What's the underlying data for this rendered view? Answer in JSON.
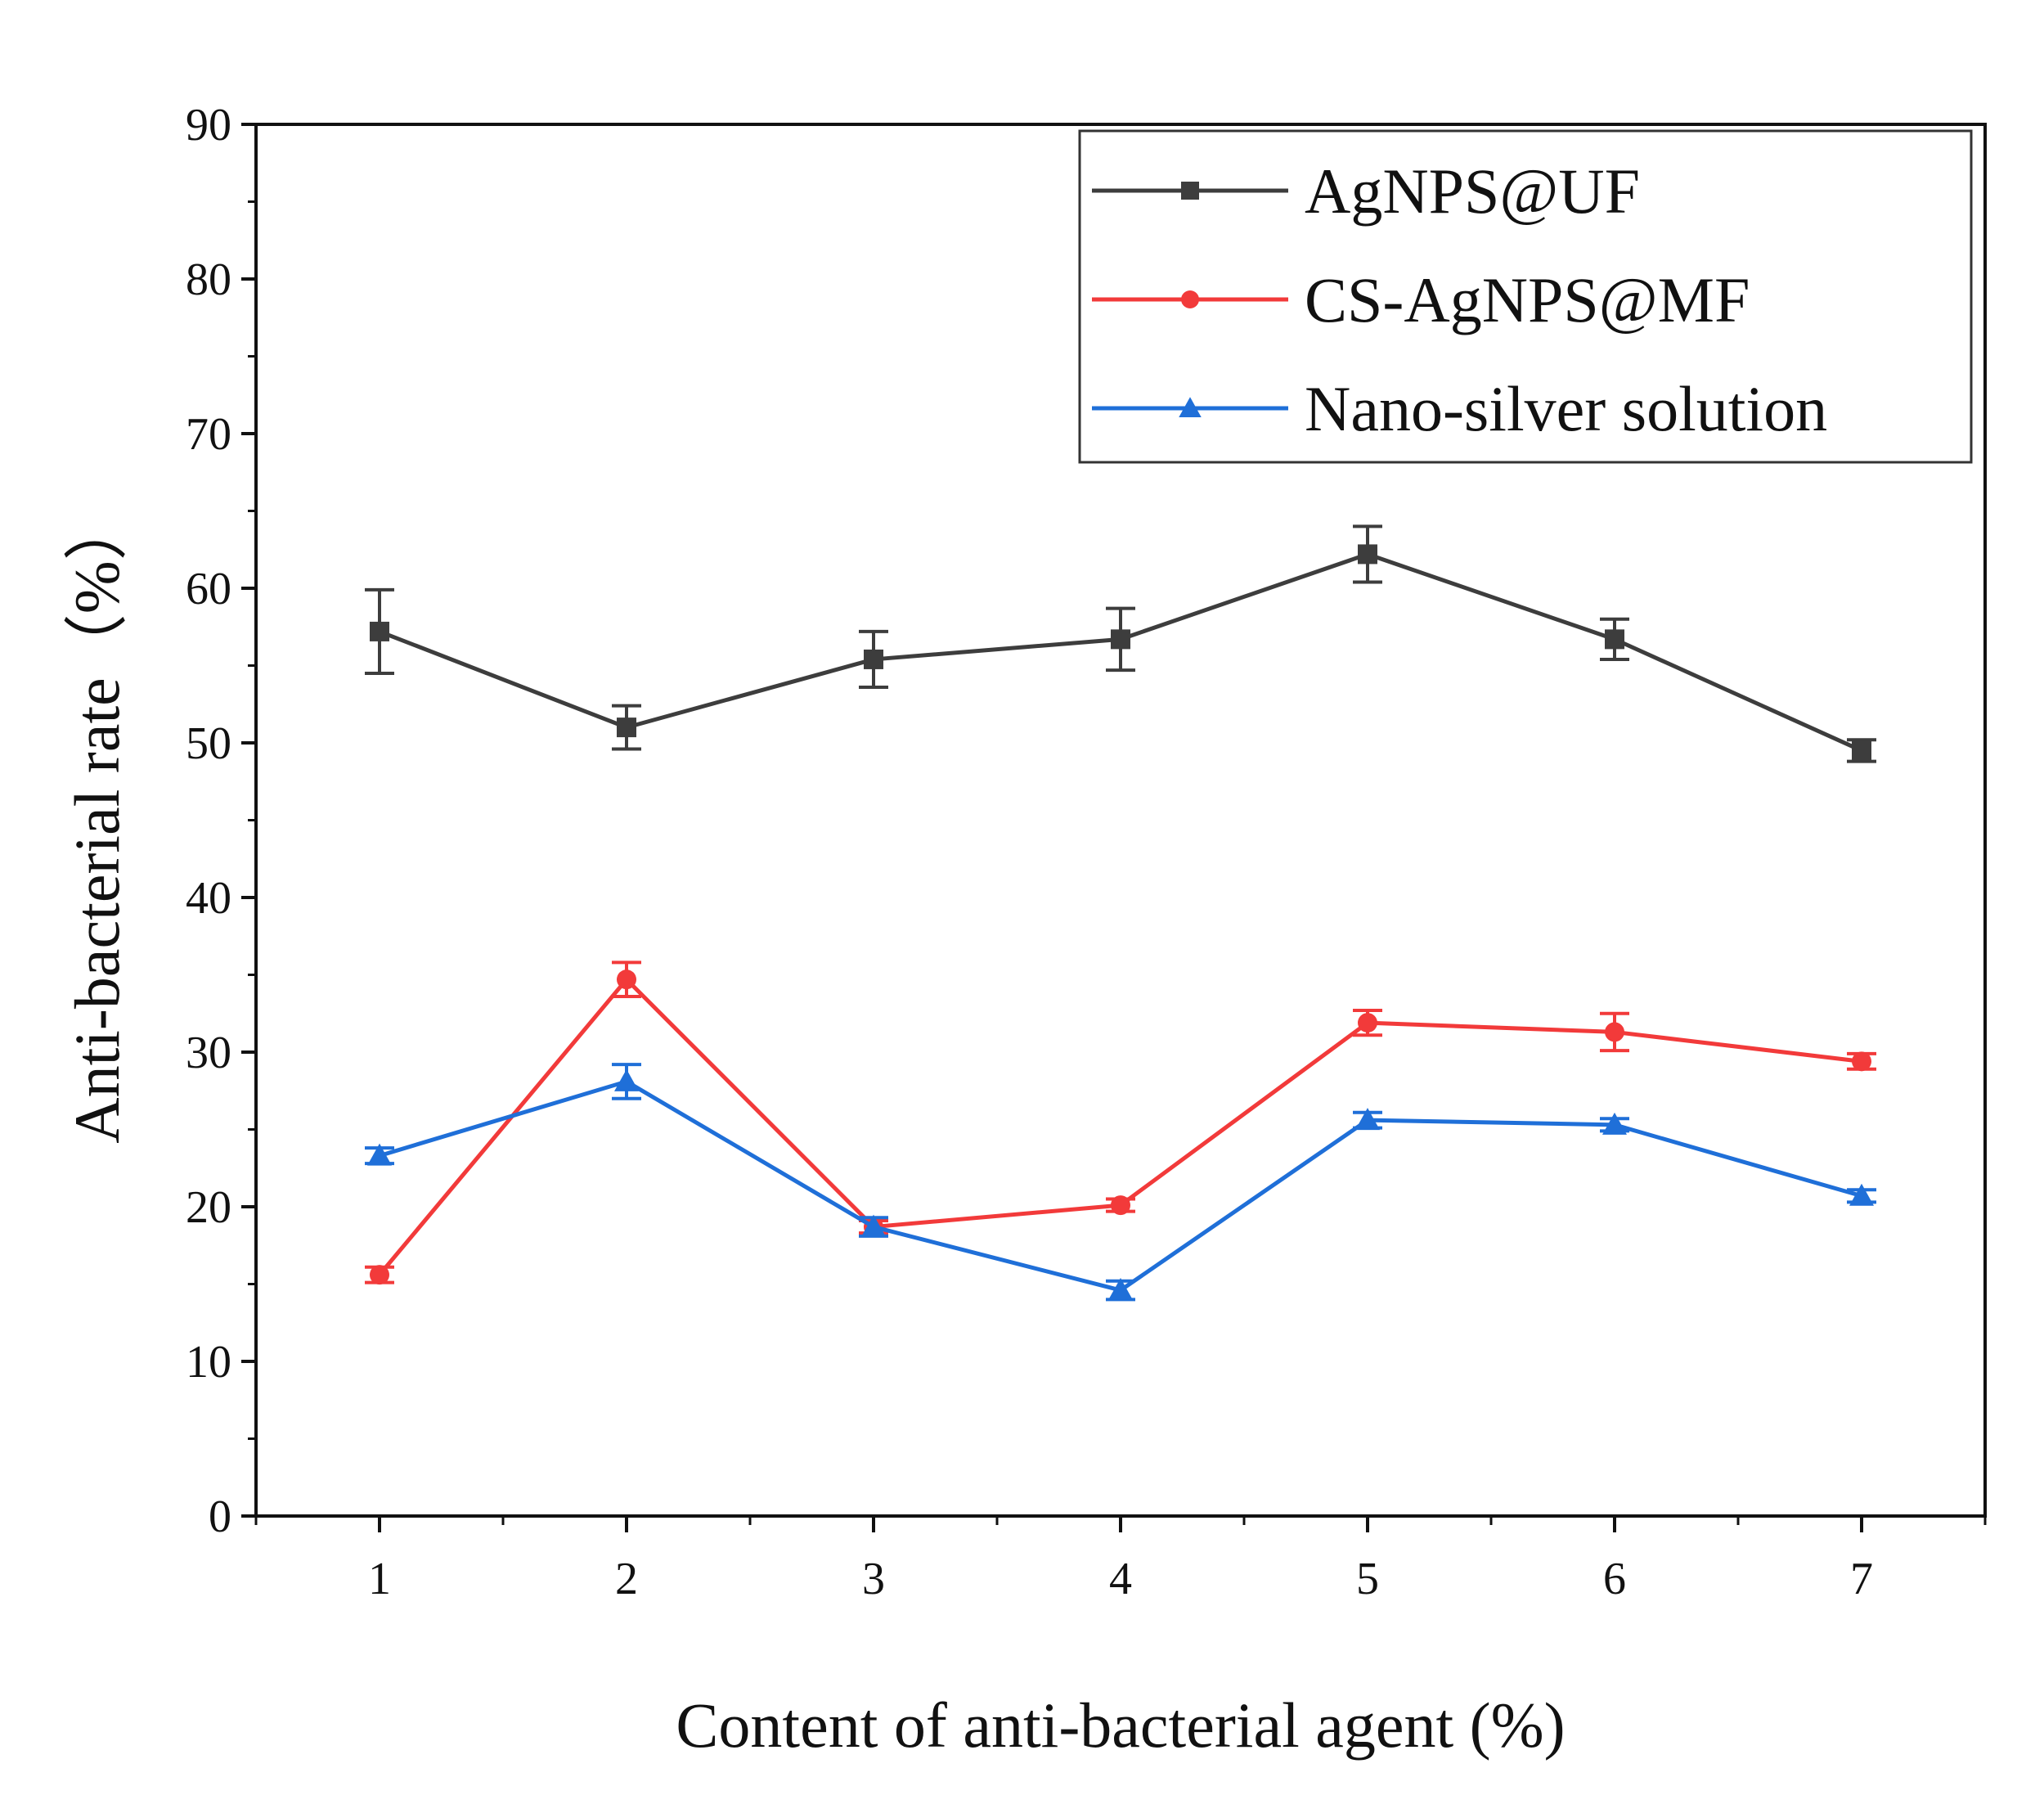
{
  "chart_data": {
    "type": "line",
    "title": "",
    "xlabel": "Content of anti-bacterial agent (%)",
    "ylabel": "Anti-bacterial rate（%）",
    "x": [
      1,
      2,
      3,
      4,
      5,
      6,
      7
    ],
    "xlim": [
      0.5,
      7.5
    ],
    "ylim": [
      0,
      90
    ],
    "x_ticks": [
      1,
      2,
      3,
      4,
      5,
      6,
      7
    ],
    "y_ticks": [
      0,
      10,
      20,
      30,
      40,
      50,
      60,
      70,
      80,
      90
    ],
    "grid": false,
    "legend_position": "top-right",
    "series": [
      {
        "name": "AgNPS@UF",
        "color": "#3d3d3d",
        "marker": "square",
        "values": [
          57.2,
          51.0,
          55.4,
          56.7,
          62.2,
          56.7,
          49.5
        ],
        "errors": [
          2.7,
          1.4,
          1.8,
          2.0,
          1.8,
          1.3,
          0.7
        ]
      },
      {
        "name": "CS-AgNPS@MF",
        "color": "#f23a3a",
        "marker": "circle",
        "values": [
          15.6,
          34.7,
          18.7,
          20.1,
          31.9,
          31.3,
          29.4
        ],
        "errors": [
          0.5,
          1.1,
          0.4,
          0.4,
          0.8,
          1.2,
          0.5
        ]
      },
      {
        "name": "Nano-silver solution",
        "color": "#1f6fd8",
        "marker": "triangle",
        "values": [
          23.3,
          28.1,
          18.7,
          14.6,
          25.6,
          25.3,
          20.7
        ],
        "errors": [
          0.5,
          1.1,
          0.6,
          0.6,
          0.5,
          0.4,
          0.4
        ]
      }
    ]
  }
}
